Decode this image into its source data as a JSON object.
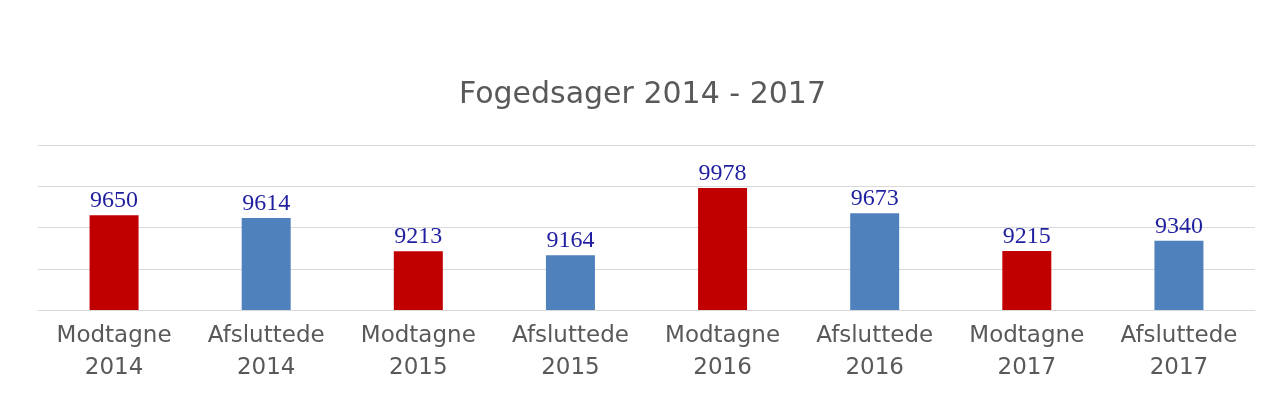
{
  "chart_data": {
    "type": "bar",
    "title": "Fogedsager 2014 - 2017",
    "categories": [
      "Modtagne\n2014",
      "Afsluttede\n2014",
      "Modtagne\n2015",
      "Afsluttede\n2015",
      "Modtagne\n2016",
      "Afsluttede\n2016",
      "Modtagne\n2017",
      "Afsluttede\n2017"
    ],
    "values": [
      9650,
      9614,
      9213,
      9164,
      9978,
      9673,
      9215,
      9340
    ],
    "colors": [
      "#c00000",
      "#4f81bd",
      "#c00000",
      "#4f81bd",
      "#c00000",
      "#4f81bd",
      "#c00000",
      "#4f81bd"
    ],
    "ylim": [
      8500,
      10500
    ],
    "yticks": [
      {
        "value": 8500,
        "label": null
      },
      {
        "value": 9000,
        "label": null
      },
      {
        "value": 9500,
        "label": null
      },
      {
        "value": 10000,
        "label": null
      },
      {
        "value": 10500,
        "label": null
      }
    ],
    "grid": "y",
    "tick_labels": "x",
    "data_labels": true
  }
}
